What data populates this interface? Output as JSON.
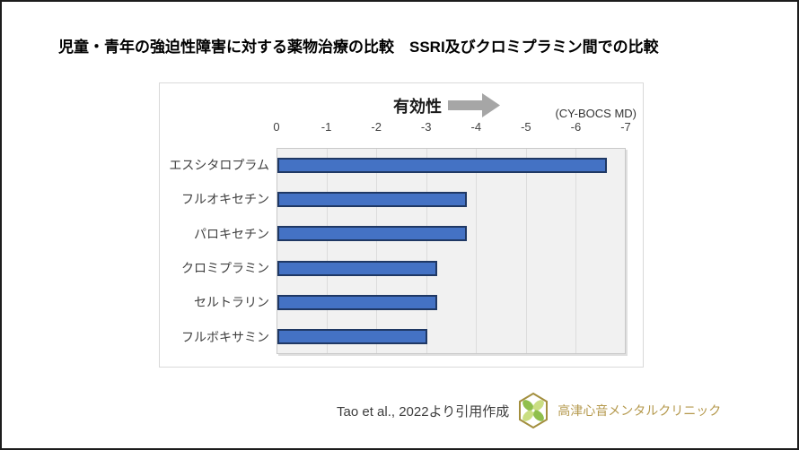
{
  "page": {
    "title": "児童・青年の強迫性障害に対する薬物治療の比較　SSRI及びクロミプラミン間での比較"
  },
  "chart": {
    "direction_label": "有効性",
    "unit_label": "(CY-BOCS MD)",
    "colors": {
      "bar_fill": "#4472c4",
      "bar_border": "#1f3864",
      "arrow": "#a6a6a6",
      "plot_bg": "#f1f1f1",
      "gridline": "#dcdcdc",
      "clinic_gold": "#b5994d"
    }
  },
  "chart_data": {
    "type": "bar",
    "orientation": "horizontal",
    "title": "児童・青年の強迫性障害に対する薬物治療の比較　SSRI及びクロミプラミン間での比較",
    "categories": [
      "エスシタロプラム",
      "フルオキセチン",
      "パロキセチン",
      "クロミプラミン",
      "セルトラリン",
      "フルボキサミン"
    ],
    "values": [
      -6.6,
      -3.8,
      -3.8,
      -3.2,
      -3.2,
      -3.0
    ],
    "xlabel": "(CY-BOCS MD)",
    "ylabel": "",
    "xlim": [
      0,
      -7
    ],
    "xticks": [
      "0",
      "-1",
      "-2",
      "-3",
      "-4",
      "-5",
      "-6",
      "-7"
    ],
    "grid": true,
    "legend": null,
    "annotation": "有効性（矢印は右方向＝効果大）"
  },
  "footer": {
    "source": "Tao et al., 2022より引用作成",
    "clinic_name": "高津心音メンタルクリニック"
  }
}
